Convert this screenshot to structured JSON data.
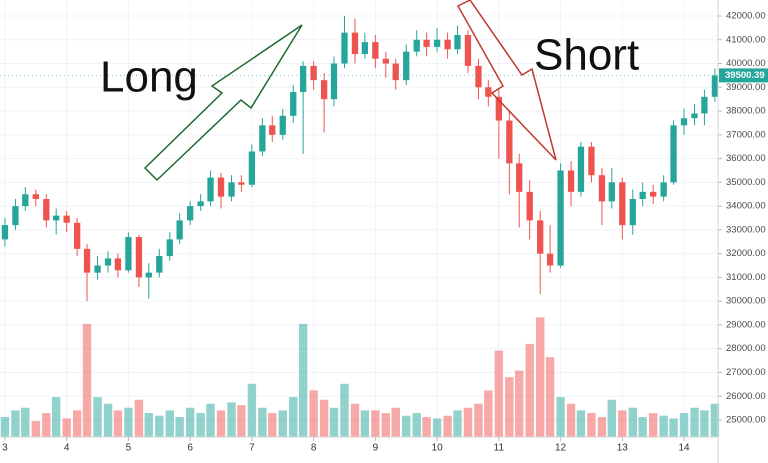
{
  "chart_data": {
    "type": "candlestick",
    "annotations": [
      "Long",
      "Short"
    ],
    "up_color": "#26a69a",
    "down_color": "#ef5350",
    "grid": true,
    "xlim": [
      2.92,
      14.55
    ],
    "xticks": [
      3,
      4,
      5,
      6,
      7,
      8,
      9,
      10,
      11,
      12,
      13,
      14
    ],
    "ylim": [
      24285,
      42673
    ],
    "yticks": [
      {
        "value": 25000,
        "label": "25000.00"
      },
      {
        "value": 26000,
        "label": "26000.00"
      },
      {
        "value": 27000,
        "label": "27000.00"
      },
      {
        "value": 28000,
        "label": "28000.00"
      },
      {
        "value": 29000,
        "label": "29000.00"
      },
      {
        "value": 30000,
        "label": "30000.00"
      },
      {
        "value": 31000,
        "label": "31000.00"
      },
      {
        "value": 32000,
        "label": "32000.00"
      },
      {
        "value": 33000,
        "label": "33000.00"
      },
      {
        "value": 34000,
        "label": "34000.00"
      },
      {
        "value": 35000,
        "label": "35000.00"
      },
      {
        "value": 36000,
        "label": "36000.00"
      },
      {
        "value": 37000,
        "label": "37000.00"
      },
      {
        "value": 38000,
        "label": "38000.00"
      },
      {
        "value": 39000,
        "label": "39000.00"
      },
      {
        "value": 40000,
        "label": "40000.00"
      },
      {
        "value": 41000,
        "label": "41000.00"
      },
      {
        "value": 42000,
        "label": "42000.00"
      }
    ],
    "last_price": 39500.39,
    "x": [
      3,
      3.17,
      3.33,
      3.5,
      3.67,
      3.83,
      4,
      4.17,
      4.33,
      4.5,
      4.67,
      4.83,
      5,
      5.17,
      5.33,
      5.5,
      5.67,
      5.83,
      6,
      6.17,
      6.33,
      6.5,
      6.67,
      6.83,
      7,
      7.17,
      7.33,
      7.5,
      7.67,
      7.83,
      8,
      8.17,
      8.33,
      8.5,
      8.67,
      8.83,
      9,
      9.17,
      9.33,
      9.5,
      9.67,
      9.83,
      10,
      10.17,
      10.33,
      10.5,
      10.67,
      10.83,
      11,
      11.17,
      11.33,
      11.5,
      11.67,
      11.83,
      12,
      12.17,
      12.33,
      12.5,
      12.67,
      12.83,
      13,
      13.17,
      13.33,
      13.5,
      13.67,
      13.83,
      14,
      14.17,
      14.33,
      14.5
    ],
    "open": [
      32600,
      33200,
      34000,
      34500,
      34300,
      33400,
      33600,
      33300,
      32200,
      31200,
      31500,
      31800,
      31300,
      32700,
      31000,
      31200,
      31900,
      32600,
      33400,
      34000,
      34200,
      35200,
      34400,
      35000,
      34900,
      36300,
      37400,
      37000,
      37800,
      38800,
      39900,
      39300,
      38500,
      40000,
      41300,
      40400,
      40900,
      40200,
      40000,
      39300,
      40500,
      41000,
      40700,
      41000,
      40600,
      41200,
      39900,
      39000,
      38600,
      37600,
      35800,
      34600,
      33400,
      32000,
      31500,
      35500,
      34600,
      36500,
      35300,
      34200,
      35000,
      33200,
      34300,
      34600,
      34400,
      35000,
      37400,
      37700,
      37900,
      38600
    ],
    "high": [
      33500,
      34300,
      34800,
      34700,
      34500,
      33900,
      33800,
      33500,
      32400,
      31900,
      32100,
      32000,
      32900,
      32800,
      31600,
      32200,
      32900,
      33700,
      34200,
      34500,
      35500,
      35400,
      35300,
      35300,
      36600,
      37700,
      37800,
      38100,
      39100,
      40100,
      40100,
      39600,
      40300,
      42000,
      41900,
      41300,
      41200,
      40500,
      40200,
      40800,
      41400,
      41300,
      41500,
      41300,
      41600,
      41400,
      40200,
      39300,
      38900,
      38000,
      36200,
      35100,
      33800,
      33200,
      35800,
      35900,
      36700,
      36700,
      35600,
      35600,
      35200,
      34700,
      35000,
      34900,
      35300,
      37600,
      38100,
      38300,
      38900,
      39800
    ],
    "low": [
      32300,
      33000,
      33800,
      34000,
      33100,
      32800,
      32900,
      31900,
      30000,
      30900,
      31200,
      31000,
      31200,
      30600,
      30100,
      31000,
      31700,
      32400,
      33200,
      33800,
      34000,
      33900,
      34200,
      34600,
      34800,
      36100,
      36700,
      36800,
      37500,
      36200,
      38900,
      37100,
      38200,
      39800,
      40000,
      40200,
      39800,
      39400,
      38900,
      39100,
      40300,
      40300,
      40500,
      40200,
      40400,
      39600,
      38500,
      38200,
      36000,
      34500,
      33100,
      32600,
      30300,
      31200,
      31400,
      34000,
      34400,
      35000,
      33200,
      33900,
      32600,
      32800,
      34000,
      34100,
      34200,
      34900,
      37000,
      37400,
      37400,
      38400
    ],
    "close": [
      33200,
      34000,
      34500,
      34300,
      33400,
      33600,
      33300,
      32200,
      31200,
      31500,
      31800,
      31300,
      32700,
      31000,
      31200,
      31900,
      32600,
      33400,
      34000,
      34200,
      35200,
      34400,
      35000,
      34900,
      36300,
      37400,
      37000,
      37800,
      38800,
      39900,
      39300,
      38500,
      40000,
      41300,
      40400,
      40900,
      40200,
      40000,
      39300,
      40500,
      41000,
      40700,
      41000,
      40600,
      41200,
      39900,
      39000,
      38600,
      37600,
      35800,
      34600,
      33400,
      32000,
      31500,
      35500,
      34600,
      36500,
      35300,
      34200,
      35000,
      33200,
      34300,
      34600,
      34400,
      35000,
      37400,
      37700,
      37900,
      38600,
      39500
    ],
    "volume": [
      15,
      20,
      22,
      12,
      18,
      30,
      14,
      20,
      85,
      30,
      25,
      20,
      22,
      28,
      18,
      16,
      20,
      15,
      22,
      18,
      25,
      20,
      26,
      24,
      40,
      22,
      18,
      20,
      30,
      85,
      35,
      28,
      22,
      40,
      25,
      20,
      20,
      18,
      22,
      16,
      18,
      15,
      14,
      16,
      20,
      22,
      25,
      35,
      65,
      45,
      50,
      70,
      90,
      60,
      30,
      25,
      20,
      18,
      15,
      28,
      20,
      22,
      15,
      18,
      16,
      14,
      18,
      22,
      20,
      25
    ]
  }
}
